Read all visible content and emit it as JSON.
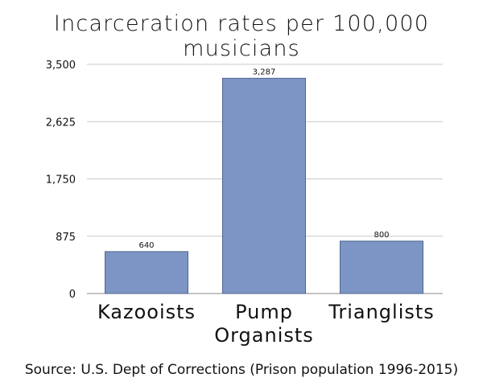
{
  "title": "Incarceration rates per 100,000 musicians",
  "source": "Source: U.S. Dept of Corrections (Prison population 1996-2015)",
  "colors": {
    "bar": "#7c95c4",
    "bar_edge": "#4f6591",
    "grid": "#c8c8c8",
    "axis": "#888888"
  },
  "chart_data": {
    "type": "bar",
    "title": "Incarceration rates per 100,000 musicians",
    "categories": [
      [
        "Kazooists"
      ],
      [
        "Pump",
        "Organists"
      ],
      [
        "Trianglists"
      ]
    ],
    "values": [
      640,
      3287,
      800
    ],
    "value_labels": [
      "640",
      "3,287",
      "800"
    ],
    "yticks": [
      0,
      875,
      1750,
      2625,
      3500
    ],
    "ytick_labels": [
      "0",
      "875",
      "1,750",
      "2,625",
      "3,500"
    ],
    "ylim": [
      0,
      3500
    ],
    "grid": true,
    "xlabel": "",
    "ylabel": ""
  }
}
